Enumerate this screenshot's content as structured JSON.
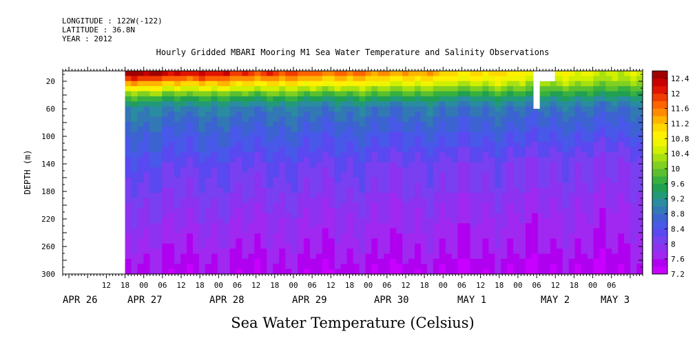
{
  "header": {
    "longitude": "LONGITUDE : 122W(-122)",
    "latitude": "LATITUDE : 36.8N",
    "year": "YEAR : 2012"
  },
  "chart_data": {
    "type": "heatmap",
    "title": "Hourly Gridded MBARI Mooring M1 Sea Water Temperature and Salinity Observations",
    "xlabel": "Sea Water Temperature (Celsius)",
    "ylabel": "DEPTH (m)",
    "ylim": [
      300,
      5
    ],
    "xlim": [
      "2012-04-25T22:00",
      "2012-05-03T16:00"
    ],
    "data_start": "2012-04-26T18:00",
    "y_ticks": [
      20,
      60,
      100,
      140,
      180,
      220,
      260,
      300
    ],
    "x_hour_ticks": [
      "12",
      "18",
      "00",
      "06",
      "12",
      "18",
      "00",
      "06",
      "12",
      "18",
      "00",
      "06",
      "12",
      "18",
      "00",
      "06",
      "12",
      "18",
      "00",
      "06",
      "12",
      "18",
      "00",
      "06",
      "12",
      "18",
      "00",
      "06"
    ],
    "x_day_labels": [
      "APR 26",
      "APR 27",
      "APR 28",
      "APR 29",
      "APR 30",
      "MAY  1",
      "MAY  2",
      "MAY  3"
    ],
    "colorbar_levels": [
      7.2,
      7.4,
      7.6,
      7.8,
      8.0,
      8.2,
      8.4,
      8.6,
      8.8,
      9.0,
      9.2,
      9.4,
      9.6,
      9.8,
      10.0,
      10.2,
      10.4,
      10.6,
      10.8,
      11.0,
      11.2,
      11.4,
      11.6,
      11.8,
      12.0,
      12.2,
      12.4,
      12.6
    ],
    "colorbar_labels": [
      "12.4",
      "12",
      "11.6",
      "11.2",
      "10.8",
      "10.4",
      "10",
      "9.6",
      "9.2",
      "8.8",
      "8.4",
      "8",
      "7.6",
      "7.2"
    ],
    "colors": [
      "#c800ff",
      "#b000f0",
      "#a028f0",
      "#8c32f0",
      "#7840f0",
      "#5a48f0",
      "#4858e8",
      "#3c64d0",
      "#3278b4",
      "#2a8ca0",
      "#229a78",
      "#20a050",
      "#38b040",
      "#5ac030",
      "#80d020",
      "#a8e010",
      "#d0f000",
      "#f0f400",
      "#fff000",
      "#ffd800",
      "#ffb400",
      "#ff8c00",
      "#ff6400",
      "#f03c00",
      "#e01400",
      "#c80000",
      "#a00000"
    ],
    "profile": {
      "depths": [
        5,
        10,
        20,
        30,
        40,
        50,
        60,
        80,
        100,
        120,
        140,
        160,
        180,
        200,
        220,
        240,
        260,
        280,
        300
      ],
      "temps_start": [
        12.6,
        12.4,
        11.6,
        10.8,
        10.0,
        9.4,
        9.0,
        8.8,
        8.6,
        8.5,
        8.3,
        8.2,
        8.1,
        8.0,
        7.9,
        7.8,
        7.7,
        7.6,
        7.5
      ],
      "temps_end": [
        10.4,
        10.4,
        10.2,
        9.8,
        9.4,
        9.0,
        8.8,
        8.6,
        8.4,
        8.2,
        8.0,
        8.0,
        7.9,
        7.8,
        7.7,
        7.7,
        7.6,
        7.5,
        7.4
      ]
    },
    "gap": {
      "start": "2012-05-02T05:00",
      "end": "2012-05-02T07:00",
      "depth_range": [
        5,
        60
      ]
    }
  }
}
